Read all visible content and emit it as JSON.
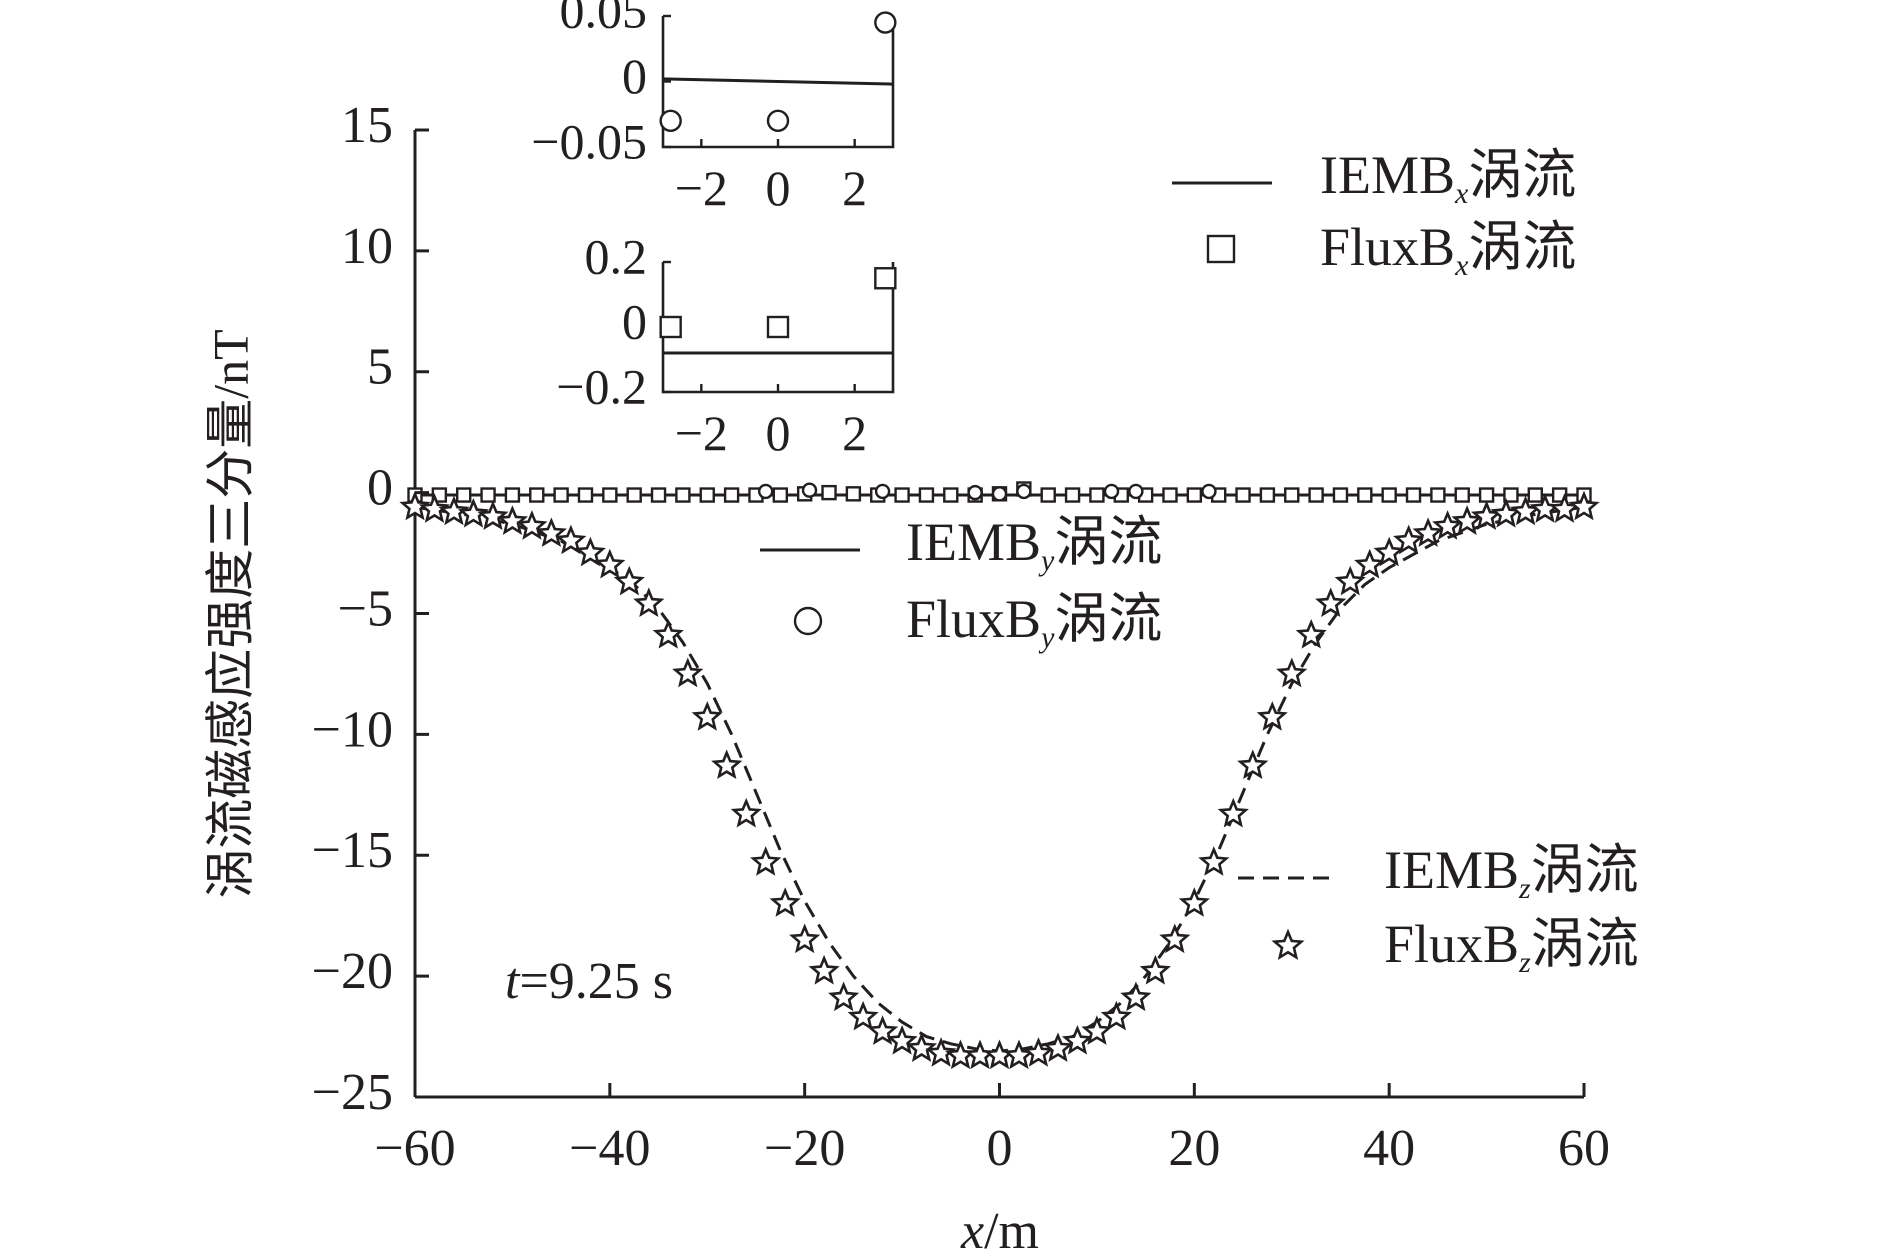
{
  "chart_data": {
    "type": "line",
    "title": "",
    "xlabel": {
      "var": "x",
      "unit": "/m"
    },
    "ylabel": "涡流磁感应强度三分量/nT",
    "xlim": [
      -60,
      60
    ],
    "ylim": [
      -25,
      15
    ],
    "xticks": [
      "−60",
      "−40",
      "−20",
      "0",
      "20",
      "40",
      "60"
    ],
    "yticks": [
      "15",
      "10",
      "5",
      "0",
      "−5",
      "−10",
      "−15",
      "−20",
      "−25"
    ],
    "grid": false,
    "annotation": {
      "var": "t",
      "rest": "=9.25 s"
    },
    "legend": [
      {
        "base": "IEMB",
        "sub": "x",
        "tail": "涡流",
        "style": "solid",
        "marker": "none"
      },
      {
        "base": "FluxB",
        "sub": "x",
        "tail": "涡流",
        "style": "none",
        "marker": "square"
      },
      {
        "base": "IEMB",
        "sub": "y",
        "tail": "涡流",
        "style": "solid",
        "marker": "none"
      },
      {
        "base": "FluxB",
        "sub": "y",
        "tail": "涡流",
        "style": "none",
        "marker": "circle"
      },
      {
        "base": "IEMB",
        "sub": "z",
        "tail": "涡流",
        "style": "dashed",
        "marker": "none"
      },
      {
        "base": "FluxB",
        "sub": "z",
        "tail": "涡流",
        "style": "none",
        "marker": "star"
      }
    ],
    "series": [
      {
        "key": "iemb_x",
        "style": "solid",
        "x": [
          -60,
          60
        ],
        "y": [
          -0.1,
          -0.1
        ]
      },
      {
        "key": "iemb_y",
        "style": "solid",
        "x": [
          -60,
          60
        ],
        "y": [
          -0.1,
          -0.1
        ]
      },
      {
        "key": "flux_x",
        "marker": "square",
        "x": [
          -60,
          -57.5,
          -55,
          -52.5,
          -50,
          -47.5,
          -45,
          -42.5,
          -40,
          -37.5,
          -35,
          -32.5,
          -30,
          -27.5,
          -25,
          -22.5,
          -20,
          -17.5,
          -15,
          -12.5,
          -10,
          -7.5,
          -5,
          -2.5,
          0,
          2.5,
          5,
          7.5,
          10,
          12.5,
          15,
          17.5,
          20,
          22.5,
          25,
          27.5,
          30,
          32.5,
          35,
          37.5,
          40,
          42.5,
          45,
          47.5,
          50,
          52.5,
          55,
          57.5,
          60
        ],
        "y": [
          -0.1,
          -0.1,
          -0.1,
          -0.1,
          -0.1,
          -0.1,
          -0.1,
          -0.1,
          -0.1,
          -0.1,
          -0.1,
          -0.1,
          -0.1,
          -0.1,
          -0.1,
          -0.1,
          -0.05,
          0.0,
          -0.05,
          -0.1,
          -0.1,
          -0.1,
          -0.1,
          -0.1,
          -0.05,
          0.15,
          -0.1,
          -0.1,
          -0.1,
          -0.1,
          -0.1,
          -0.1,
          -0.1,
          -0.1,
          -0.1,
          -0.1,
          -0.1,
          -0.1,
          -0.1,
          -0.1,
          -0.1,
          -0.1,
          -0.1,
          -0.1,
          -0.1,
          -0.1,
          -0.1,
          -0.1,
          -0.1
        ]
      },
      {
        "key": "flux_y",
        "marker": "circle",
        "x": [
          -24,
          -19.5,
          -12,
          -2.5,
          0,
          2.5,
          11.5,
          14,
          21.5
        ],
        "y": [
          0.05,
          0.1,
          0.05,
          0.0,
          -0.05,
          0.05,
          0.05,
          0.05,
          0.05
        ]
      },
      {
        "key": "iemb_z",
        "style": "dashed",
        "x": [
          -60,
          -55,
          -50,
          -45,
          -40,
          -37.5,
          -35,
          -32.5,
          -30,
          -27.5,
          -25,
          -22.5,
          -20,
          -17.5,
          -15,
          -12.5,
          -10,
          -7.5,
          -5,
          -2.5,
          0,
          2.5,
          5,
          7.5,
          10,
          12.5,
          15,
          17.5,
          20,
          22.5,
          25,
          27.5,
          30,
          32.5,
          35,
          37.5,
          40,
          45,
          50,
          55,
          60
        ],
        "y": [
          -0.6,
          -0.9,
          -1.3,
          -2.0,
          -3.1,
          -3.8,
          -4.8,
          -6.2,
          -7.9,
          -10.0,
          -12.4,
          -14.8,
          -16.9,
          -18.6,
          -20.0,
          -21.1,
          -21.9,
          -22.5,
          -22.8,
          -23.0,
          -23.1,
          -23.0,
          -22.8,
          -22.5,
          -21.9,
          -21.1,
          -20.0,
          -18.6,
          -16.9,
          -14.8,
          -12.4,
          -10.0,
          -7.9,
          -6.2,
          -4.8,
          -3.8,
          -3.1,
          -2.0,
          -1.3,
          -0.9,
          -0.6
        ]
      },
      {
        "key": "flux_z",
        "marker": "star",
        "x": [
          -60,
          -58,
          -56,
          -54,
          -52,
          -50,
          -48,
          -46,
          -44,
          -42,
          -40,
          -38,
          -36,
          -34,
          -32,
          -30,
          -28,
          -26,
          -24,
          -22,
          -20,
          -18,
          -16,
          -14,
          -12,
          -10,
          -8,
          -6,
          -4,
          -2,
          0,
          2,
          4,
          6,
          8,
          10,
          12,
          14,
          16,
          18,
          20,
          22,
          24,
          26,
          28,
          30,
          32,
          34,
          36,
          38,
          40,
          42,
          44,
          46,
          48,
          50,
          52,
          54,
          56,
          58,
          60
        ],
        "y": [
          -0.6,
          -0.7,
          -0.8,
          -0.9,
          -1.0,
          -1.2,
          -1.4,
          -1.7,
          -2.0,
          -2.5,
          -3.0,
          -3.7,
          -4.6,
          -5.9,
          -7.5,
          -9.3,
          -11.3,
          -13.3,
          -15.3,
          -17.0,
          -18.5,
          -19.8,
          -20.9,
          -21.7,
          -22.3,
          -22.7,
          -23.0,
          -23.2,
          -23.3,
          -23.3,
          -23.3,
          -23.3,
          -23.2,
          -23.0,
          -22.7,
          -22.3,
          -21.7,
          -20.9,
          -19.8,
          -18.5,
          -17.0,
          -15.3,
          -13.3,
          -11.3,
          -9.3,
          -7.5,
          -5.9,
          -4.6,
          -3.7,
          -3.0,
          -2.5,
          -2.0,
          -1.7,
          -1.4,
          -1.2,
          -1.0,
          -0.9,
          -0.8,
          -0.7,
          -0.7,
          -0.6
        ]
      }
    ],
    "insets": [
      {
        "xlim": [
          -3,
          3
        ],
        "ylim": [
          -0.05,
          0.05
        ],
        "xticks": [
          "−2",
          "0",
          "2"
        ],
        "yticks": [
          "0.05",
          "0",
          "−0.05"
        ],
        "line": {
          "x": [
            -3,
            3
          ],
          "y": [
            0.002,
            -0.002
          ]
        },
        "marker": "circle",
        "points": {
          "x": [
            -2.8,
            0,
            2.8
          ],
          "y": [
            -0.03,
            -0.03,
            0.045
          ]
        }
      },
      {
        "xlim": [
          -3,
          3
        ],
        "ylim": [
          -0.2,
          0.2
        ],
        "xticks": [
          "−2",
          "0",
          "2"
        ],
        "yticks": [
          "0.2",
          "0",
          "−0.2"
        ],
        "line": {
          "x": [
            -3,
            3
          ],
          "y": [
            -0.08,
            -0.08
          ]
        },
        "marker": "square",
        "points": {
          "x": [
            -2.8,
            0,
            2.8
          ],
          "y": [
            0.0,
            0.0,
            0.15
          ]
        }
      }
    ]
  }
}
